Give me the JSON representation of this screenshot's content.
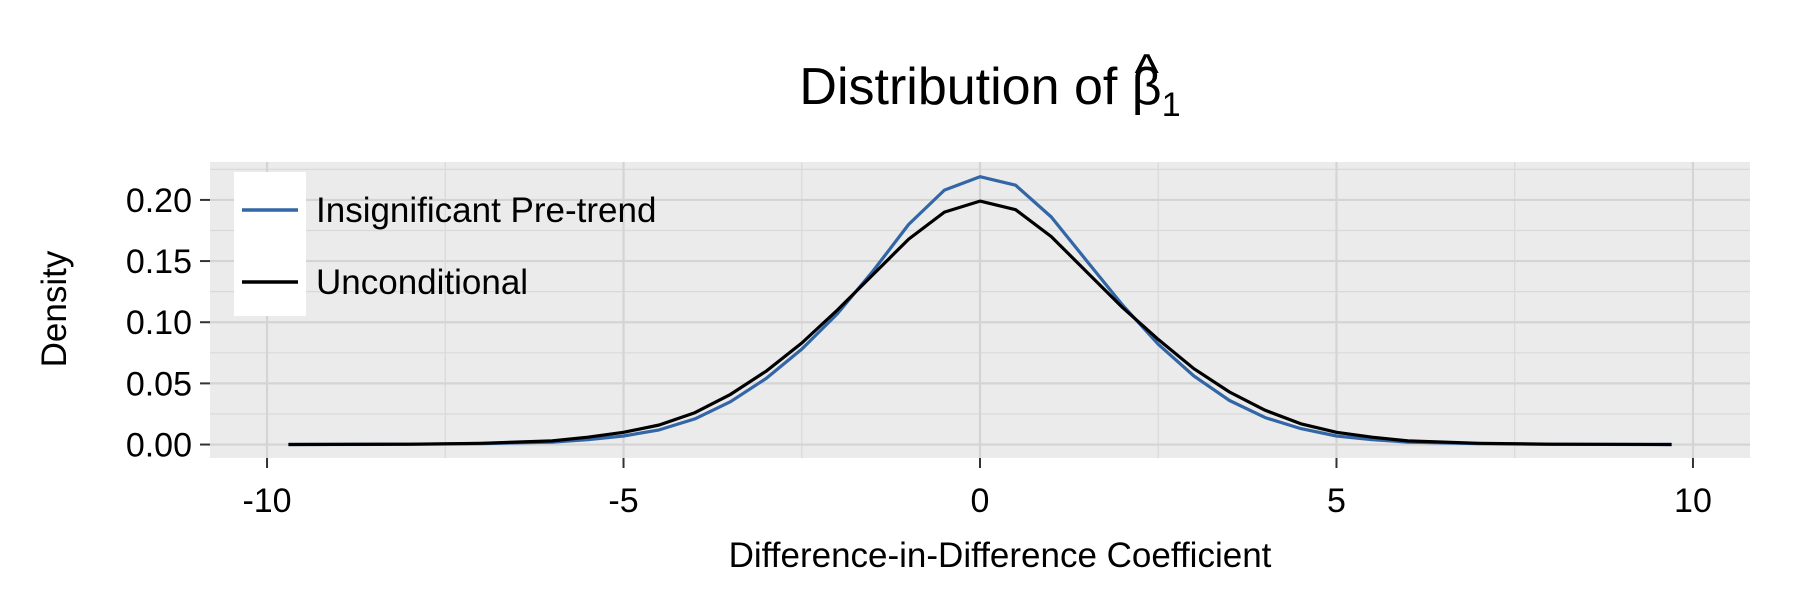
{
  "chart_data": {
    "type": "line",
    "title_prefix": "Distribution of ",
    "title_symbol": "β",
    "title_hat": "^",
    "title_subscript": "1",
    "xlabel": "Difference-in-Difference Coefficient",
    "ylabel": "Density",
    "xlim": [
      -10.8,
      10.8
    ],
    "ylim": [
      -0.011,
      0.231
    ],
    "xticks": [
      -10,
      -5,
      0,
      5,
      10
    ],
    "xtick_labels": [
      "-10",
      "-5",
      "0",
      "5",
      "10"
    ],
    "yticks": [
      0,
      0.05,
      0.1,
      0.15,
      0.2
    ],
    "ytick_labels": [
      "0.00",
      "0.05",
      "0.10",
      "0.15",
      "0.20"
    ],
    "grid": true,
    "legend_position": "top-left",
    "panel_background": "#ebebeb",
    "series": [
      {
        "name": "Insignificant Pre-trend",
        "color": "#3366a6",
        "x": [
          -9.7,
          -8,
          -7,
          -6,
          -5.5,
          -5,
          -4.5,
          -4,
          -3.5,
          -3,
          -2.5,
          -2,
          -1.5,
          -1,
          -0.5,
          0,
          0.5,
          1,
          1.5,
          2,
          2.5,
          3,
          3.5,
          4,
          4.5,
          5,
          5.5,
          6,
          7,
          8,
          9.7
        ],
        "y": [
          0,
          0.0002,
          0.0008,
          0.002,
          0.004,
          0.007,
          0.012,
          0.021,
          0.035,
          0.054,
          0.078,
          0.107,
          0.142,
          0.18,
          0.208,
          0.219,
          0.212,
          0.186,
          0.15,
          0.114,
          0.082,
          0.056,
          0.036,
          0.022,
          0.013,
          0.007,
          0.004,
          0.002,
          0.0007,
          0.0002,
          0
        ]
      },
      {
        "name": "Unconditional",
        "color": "#000000",
        "x": [
          -9.7,
          -8,
          -7,
          -6,
          -5.5,
          -5,
          -4.5,
          -4,
          -3.5,
          -3,
          -2.5,
          -2,
          -1.5,
          -1,
          -0.5,
          0,
          0.5,
          1,
          1.5,
          2,
          2.5,
          3,
          3.5,
          4,
          4.5,
          5,
          5.5,
          6,
          7,
          8,
          9.7
        ],
        "y": [
          0,
          0.0003,
          0.001,
          0.003,
          0.006,
          0.01,
          0.016,
          0.026,
          0.041,
          0.06,
          0.083,
          0.11,
          0.139,
          0.168,
          0.19,
          0.199,
          0.192,
          0.17,
          0.141,
          0.112,
          0.086,
          0.062,
          0.043,
          0.028,
          0.017,
          0.01,
          0.006,
          0.003,
          0.001,
          0.0003,
          0
        ]
      }
    ]
  }
}
